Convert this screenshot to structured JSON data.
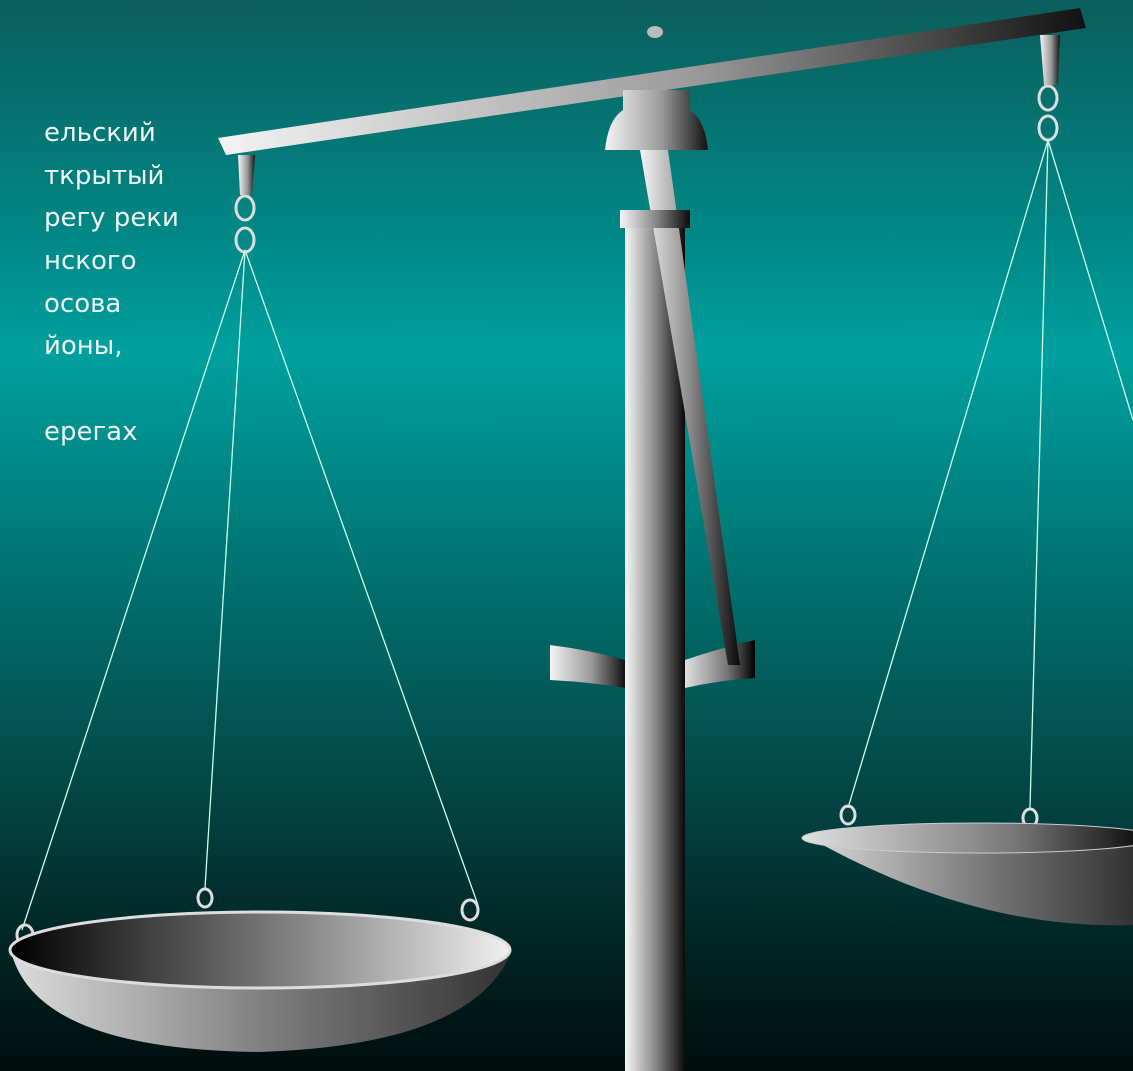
{
  "slide": {
    "text_lines": [
      "ельский",
      "ткрытый",
      "регу реки",
      "нского",
      "осова",
      "йоны,",
      "ерегах"
    ]
  }
}
